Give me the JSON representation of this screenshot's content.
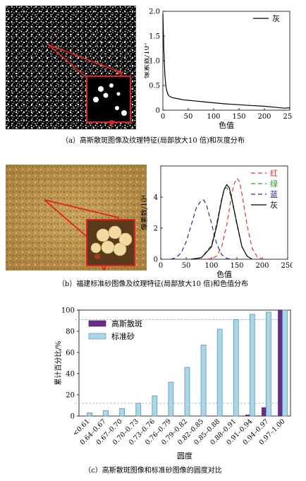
{
  "captions": {
    "a": "（a）高斯散斑图像及纹理特征(局部放大10 倍)和灰度分布",
    "b": "（b）福建标准砂图像及纹理特征(局部放大10 倍)和色值分布",
    "c": "（c）高斯散斑图像和标准砂图像的圆度对比"
  },
  "chart_data": [
    {
      "id": "a",
      "type": "line",
      "xlabel": "色值",
      "ylabel": "像素数/10⁵",
      "xlim": [
        0,
        250
      ],
      "ylim": [
        0,
        2.0
      ],
      "xticks": [
        "0",
        "50",
        "100",
        "150",
        "200",
        "250"
      ],
      "yticks": [
        "0",
        "0.5",
        "1.0",
        "1.5",
        "2.0"
      ],
      "legend_position": "top-right",
      "series": [
        {
          "name": "灰",
          "color": "#000000",
          "x": [
            0,
            2,
            4,
            6,
            8,
            10,
            12,
            15,
            20,
            25,
            30,
            40,
            50,
            60,
            80,
            100,
            120,
            150,
            180,
            200,
            220,
            240,
            250
          ],
          "y": [
            1.95,
            1.2,
            0.7,
            0.48,
            0.38,
            0.32,
            0.29,
            0.27,
            0.25,
            0.24,
            0.23,
            0.21,
            0.2,
            0.19,
            0.17,
            0.15,
            0.13,
            0.11,
            0.09,
            0.08,
            0.06,
            0.04,
            0.05
          ]
        }
      ]
    },
    {
      "id": "b",
      "type": "line",
      "xlabel": "色值",
      "ylabel": "像素数/10⁴",
      "xlim": [
        0,
        250
      ],
      "ylim": [
        0,
        6
      ],
      "xticks": [
        "0",
        "50",
        "100",
        "150",
        "200",
        "250"
      ],
      "yticks": [
        "0",
        "2",
        "4"
      ],
      "legend_position": "top-right",
      "series": [
        {
          "name": "红",
          "color": "#e0332e",
          "dash": "6,4",
          "x": [
            90,
            100,
            110,
            120,
            130,
            140,
            145,
            150,
            155,
            160,
            170,
            180,
            190,
            200
          ],
          "y": [
            0,
            0.05,
            0.2,
            0.8,
            2.2,
            4.2,
            4.9,
            5.2,
            5.0,
            4.2,
            2.2,
            0.7,
            0.15,
            0
          ]
        },
        {
          "name": "绿",
          "color": "#2a9a2a",
          "dash": "6,4",
          "x": [
            60,
            80,
            100,
            110,
            120,
            125,
            130,
            135,
            140,
            150,
            160,
            170,
            180
          ],
          "y": [
            0,
            0.1,
            0.9,
            2.3,
            3.9,
            4.5,
            4.6,
            4.4,
            3.8,
            2.2,
            0.8,
            0.2,
            0
          ]
        },
        {
          "name": "蓝",
          "color": "#2a2a9a",
          "dash": "6,4",
          "x": [
            20,
            30,
            40,
            50,
            60,
            70,
            80,
            85,
            90,
            100,
            110,
            120,
            130,
            140
          ],
          "y": [
            0,
            0.1,
            0.4,
            1.1,
            2.2,
            3.3,
            3.8,
            3.8,
            3.5,
            2.3,
            1.0,
            0.3,
            0.05,
            0
          ]
        },
        {
          "name": "灰",
          "color": "#000000",
          "x": [
            60,
            80,
            100,
            110,
            120,
            125,
            130,
            135,
            140,
            150,
            160,
            170,
            180
          ],
          "y": [
            0,
            0.1,
            0.8,
            2.1,
            3.8,
            4.5,
            4.8,
            4.6,
            3.9,
            2.3,
            0.8,
            0.2,
            0
          ]
        }
      ]
    },
    {
      "id": "c",
      "type": "bar",
      "xlabel": "圆度",
      "ylabel": "累计百分比/%",
      "ylim": [
        0,
        100
      ],
      "yticks": [
        "0",
        "20",
        "40",
        "60",
        "80",
        "100"
      ],
      "legend_position": "top-left",
      "categories": [
        "<0.61",
        "0.64–0.67",
        "0.67–0.70",
        "0.70–0.73",
        "0.73–0.76",
        "0.76–0.79",
        "0.79–0.82",
        "0.82–0.85",
        "0.85–0.88",
        "0.88–0.91",
        "0.91–0.94",
        "0.94–0.97",
        "0.97–1.00"
      ],
      "series": [
        {
          "name": "高斯散斑",
          "color": "#6a2d8a",
          "values": [
            0,
            0,
            0,
            0,
            0,
            0,
            0,
            0,
            0,
            0,
            1,
            8,
            100
          ]
        },
        {
          "name": "标准砂",
          "color": "#a8d8e8",
          "values": [
            3,
            5,
            7,
            12,
            19,
            32,
            46,
            67,
            82,
            91,
            96,
            98,
            100
          ]
        }
      ],
      "reference_lines": [
        12,
        91
      ]
    }
  ]
}
